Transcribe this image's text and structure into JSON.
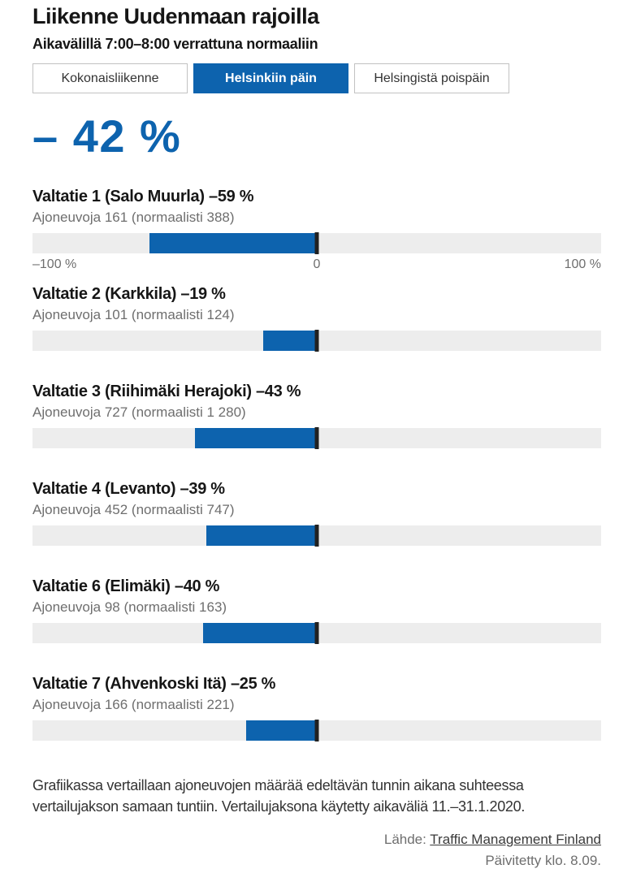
{
  "header": {
    "title": "Liikenne Uudenmaan rajoilla",
    "subtitle": "Aikavälillä 7:00–8:00 verrattuna normaaliin"
  },
  "tabs": [
    {
      "label": "Kokonaisliikenne",
      "active": false
    },
    {
      "label": "Helsinkiin päin",
      "active": true
    },
    {
      "label": "Helsingistä poispäin",
      "active": false
    }
  ],
  "summary": {
    "change_pct": -42,
    "change_label": "– 42 %"
  },
  "chart_data": {
    "type": "bar",
    "orientation": "horizontal",
    "title": "Liikenne Uudenmaan rajoilla",
    "subtitle": "Aikavälillä 7:00–8:00 verrattuna normaaliin",
    "axis": {
      "min": -100,
      "max": 100,
      "unit": "%",
      "tick_labels": [
        "–100 %",
        "0",
        "100 %"
      ]
    },
    "colors": {
      "bar": "#0d63ae",
      "track": "#ededed",
      "zero_line": "#212121"
    },
    "roads": [
      {
        "name": "Valtatie 1 (Salo Muurla)",
        "change_pct": -59,
        "change_label": "–59 %",
        "vehicles": 161,
        "normal": 388,
        "vehicles_label": "Ajoneuvoja 161 (normaalisti 388)"
      },
      {
        "name": "Valtatie 2 (Karkkila)",
        "change_pct": -19,
        "change_label": "–19 %",
        "vehicles": 101,
        "normal": 124,
        "vehicles_label": "Ajoneuvoja 101 (normaalisti 124)"
      },
      {
        "name": "Valtatie 3 (Riihimäki Herajoki)",
        "change_pct": -43,
        "change_label": "–43 %",
        "vehicles": 727,
        "normal": 1280,
        "vehicles_label": "Ajoneuvoja 727 (normaalisti 1 280)"
      },
      {
        "name": "Valtatie 4 (Levanto)",
        "change_pct": -39,
        "change_label": "–39 %",
        "vehicles": 452,
        "normal": 747,
        "vehicles_label": "Ajoneuvoja 452 (normaalisti 747)"
      },
      {
        "name": "Valtatie 6 (Elimäki)",
        "change_pct": -40,
        "change_label": "–40 %",
        "vehicles": 98,
        "normal": 163,
        "vehicles_label": "Ajoneuvoja 98 (normaalisti 163)"
      },
      {
        "name": "Valtatie 7 (Ahvenkoski Itä)",
        "change_pct": -25,
        "change_label": "–25 %",
        "vehicles": 166,
        "normal": 221,
        "vehicles_label": "Ajoneuvoja 166 (normaalisti 221)"
      }
    ]
  },
  "footer": {
    "note": "Grafiikassa vertaillaan ajoneuvojen määrää edeltävän tunnin aikana suhteessa vertailujakson samaan tuntiin. Vertailujaksona käytetty aikaväliä 11.–31.1.2020.",
    "source_label": "Lähde: ",
    "source_link": "Traffic Management Finland",
    "updated": "Päivitetty klo. 8.09."
  }
}
